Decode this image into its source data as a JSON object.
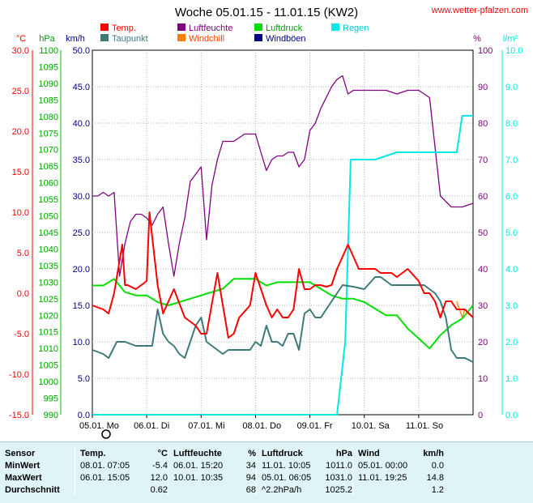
{
  "title": "Woche 05.01.15 - 11.01.15 (KW2)",
  "website": "www.wetter-pfalzen.com",
  "legend": [
    {
      "name": "Temp.",
      "color": "#ff0000"
    },
    {
      "name": "Luftfeuchte",
      "color": "#800080"
    },
    {
      "name": "Luftdruck",
      "color": "#00e000"
    },
    {
      "name": "Regen",
      "color": "#00e8e8"
    },
    {
      "name": "Taupunkt",
      "color": "#3f7a7a"
    },
    {
      "name": "Windchill",
      "color": "#ff8000"
    },
    {
      "name": "Windböen",
      "color": "#000080"
    }
  ],
  "axes": {
    "temp": {
      "unit": "°C",
      "color": "#ff0000",
      "min": -15,
      "max": 30,
      "ticks": [
        "30.0",
        "25.0",
        "20.0",
        "15.0",
        "10.0",
        "5.0",
        "0.0",
        "-5.0",
        "-10.0",
        "-15.0"
      ]
    },
    "pressure": {
      "unit": "hPa",
      "color": "#00a000",
      "min": 990,
      "max": 1100,
      "ticks": [
        "1100",
        "1095",
        "1090",
        "1085",
        "1080",
        "1075",
        "1070",
        "1065",
        "1060",
        "1055",
        "1050",
        "1045",
        "1040",
        "1035",
        "1030",
        "1025",
        "1020",
        "1015",
        "1010",
        "1005",
        "1000",
        "995",
        "990"
      ]
    },
    "wind": {
      "unit": "km/h",
      "color": "#000080",
      "min": 0,
      "max": 50,
      "ticks": [
        "50.0",
        "45.0",
        "40.0",
        "35.0",
        "30.0",
        "25.0",
        "20.0",
        "15.0",
        "10.0",
        "5.0",
        "0.0"
      ]
    },
    "humidity": {
      "unit": "%",
      "color": "#800080",
      "min": 0,
      "max": 100,
      "ticks": [
        "100",
        "90",
        "80",
        "70",
        "60",
        "50",
        "40",
        "30",
        "20",
        "10",
        "0"
      ]
    },
    "rain": {
      "unit": "l/m²",
      "color": "#00e8e8",
      "min": 0,
      "max": 10,
      "ticks": [
        "10.0",
        "9.0",
        "8.0",
        "7.0",
        "6.0",
        "5.0",
        "4.0",
        "3.0",
        "2.0",
        "1.0",
        "0.0"
      ]
    }
  },
  "chart_data": {
    "type": "line",
    "x_labels": [
      "05.01. Mo",
      "06.01. Di",
      "07.01. Mi",
      "08.01. Do",
      "09.01. Fr",
      "10.01. Sa",
      "11.01. So"
    ],
    "x_range_days": [
      0,
      7
    ],
    "grid": true,
    "series": [
      {
        "name": "Temp.",
        "axis": "temp",
        "color": "#ff0000",
        "x": [
          0,
          0.2,
          0.3,
          0.4,
          0.5,
          0.55,
          0.6,
          0.65,
          0.8,
          0.9,
          1.0,
          1.05,
          1.2,
          1.3,
          1.4,
          1.5,
          1.7,
          1.9,
          2.0,
          2.1,
          2.3,
          2.5,
          2.6,
          2.7,
          2.9,
          3.0,
          3.2,
          3.3,
          3.4,
          3.5,
          3.6,
          3.7,
          3.8,
          3.9,
          4.0,
          4.1,
          4.2,
          4.3,
          4.4,
          4.5,
          4.7,
          4.9,
          5.0,
          5.2,
          5.3,
          5.4,
          5.5,
          5.6,
          5.8,
          6.0,
          6.1,
          6.2,
          6.3,
          6.4,
          6.5,
          6.6,
          6.7,
          6.85,
          7.0
        ],
        "y": [
          -1.5,
          -2,
          -2.5,
          0,
          4,
          6,
          1,
          1,
          0.5,
          1,
          1.5,
          10,
          1,
          -2.5,
          -1,
          0.5,
          -3,
          -4,
          -5,
          -5,
          2.5,
          -5.5,
          -5,
          -3,
          -1.5,
          2.5,
          -1.5,
          -3,
          -2,
          -3,
          -3,
          -2,
          3,
          0.5,
          0.5,
          1,
          1,
          0.8,
          1,
          3,
          6,
          3,
          3,
          3,
          2.5,
          2.5,
          2.5,
          2,
          3,
          1.5,
          0,
          0,
          -1,
          -3,
          -1,
          -1,
          -2,
          -2,
          -3
        ]
      },
      {
        "name": "Taupunkt",
        "axis": "temp",
        "color": "#3f7a7a",
        "x": [
          0,
          0.2,
          0.3,
          0.45,
          0.6,
          0.8,
          1.0,
          1.1,
          1.2,
          1.3,
          1.4,
          1.5,
          1.6,
          1.7,
          1.9,
          2.0,
          2.1,
          2.2,
          2.3,
          2.4,
          2.5,
          2.7,
          2.9,
          3.0,
          3.1,
          3.2,
          3.3,
          3.4,
          3.5,
          3.6,
          3.7,
          3.8,
          3.9,
          4.0,
          4.1,
          4.2,
          4.3,
          4.4,
          4.5,
          4.6,
          4.8,
          5.0,
          5.2,
          5.3,
          5.4,
          5.5,
          5.6,
          5.7,
          5.9,
          6.0,
          6.1,
          6.2,
          6.3,
          6.4,
          6.5,
          6.6,
          6.7,
          6.85,
          7.0
        ],
        "y": [
          -7,
          -7.5,
          -8,
          -6,
          -6,
          -6.5,
          -6.5,
          -6.5,
          -2,
          -5,
          -6,
          -6.5,
          -7.5,
          -8,
          -4,
          -3,
          -6,
          -6.5,
          -7,
          -7.5,
          -7,
          -7,
          -7,
          -6,
          -6.5,
          -4,
          -6,
          -6,
          -6.5,
          -5,
          -5,
          -7,
          -2.5,
          -2,
          -3,
          -3,
          -2,
          -1,
          0,
          1,
          0.8,
          0.5,
          2,
          2,
          1.5,
          1,
          1,
          1,
          1,
          1,
          1,
          0.5,
          0,
          -1,
          -3,
          -7,
          -8,
          -8,
          -8.5
        ]
      },
      {
        "name": "Luftfeuchte",
        "axis": "humidity",
        "color": "#800080",
        "x": [
          0,
          0.1,
          0.2,
          0.3,
          0.4,
          0.5,
          0.6,
          0.7,
          0.8,
          0.9,
          1.0,
          1.1,
          1.2,
          1.3,
          1.4,
          1.5,
          1.6,
          1.7,
          1.8,
          1.9,
          2.0,
          2.1,
          2.2,
          2.3,
          2.4,
          2.5,
          2.6,
          2.7,
          2.8,
          2.9,
          3.0,
          3.1,
          3.2,
          3.3,
          3.4,
          3.5,
          3.6,
          3.7,
          3.8,
          3.9,
          4.0,
          4.1,
          4.2,
          4.3,
          4.4,
          4.5,
          4.6,
          4.7,
          4.8,
          4.9,
          5.0,
          5.2,
          5.4,
          5.6,
          5.8,
          6.0,
          6.2,
          6.4,
          6.6,
          6.8,
          7.0
        ],
        "y": [
          60,
          60,
          61,
          60,
          61,
          38,
          47,
          53,
          55,
          55,
          54,
          52,
          55,
          57,
          47,
          38,
          47,
          54,
          64,
          66,
          68,
          48,
          63,
          70,
          75,
          75,
          75,
          76,
          77,
          77,
          77,
          72,
          67,
          70,
          71,
          71,
          72,
          72,
          68,
          70,
          78,
          80,
          84,
          87,
          90,
          92,
          93,
          88,
          89,
          89,
          89,
          89,
          89,
          88,
          89,
          89,
          87,
          60,
          57,
          57,
          58
        ]
      },
      {
        "name": "Luftdruck",
        "axis": "pressure",
        "color": "#00e000",
        "x": [
          0,
          0.2,
          0.4,
          0.6,
          0.8,
          1.0,
          1.2,
          1.4,
          1.6,
          1.8,
          2.0,
          2.2,
          2.4,
          2.6,
          2.8,
          3.0,
          3.2,
          3.4,
          3.6,
          3.8,
          4.0,
          4.2,
          4.4,
          4.6,
          4.8,
          5.0,
          5.2,
          5.4,
          5.6,
          5.8,
          6.0,
          6.2,
          6.4,
          6.6,
          6.8,
          7.0
        ],
        "y": [
          1029,
          1029,
          1031,
          1027,
          1026,
          1026,
          1024,
          1023,
          1024,
          1025,
          1026,
          1027,
          1028,
          1031,
          1031,
          1031,
          1029,
          1030,
          1030,
          1030,
          1030,
          1028,
          1026,
          1025,
          1025,
          1024,
          1022,
          1020,
          1020,
          1016,
          1013,
          1010,
          1014,
          1017,
          1019,
          1023
        ]
      },
      {
        "name": "Regen",
        "axis": "rain",
        "color": "#00e8e8",
        "x": [
          0,
          4.5,
          4.65,
          4.75,
          5.0,
          5.2,
          5.6,
          5.8,
          6.0,
          6.2,
          6.5,
          6.7,
          6.8,
          7.0
        ],
        "y": [
          0,
          0,
          2.0,
          7.0,
          7.0,
          7.0,
          7.2,
          7.2,
          7.2,
          7.2,
          7.2,
          7.2,
          8.2,
          8.2
        ]
      },
      {
        "name": "Windchill",
        "axis": "temp",
        "color": "#ff8000",
        "x": [
          6.7,
          6.8,
          6.85,
          6.9,
          7.0
        ],
        "y": [
          -1,
          -3,
          -2,
          -2.5,
          -3
        ]
      }
    ]
  },
  "stats": {
    "headers": {
      "sensor": "Sensor",
      "temp": "Temp.",
      "temp_unit": "°C",
      "hum": "Luftfeuchte",
      "hum_unit": "%",
      "press": "Luftdruck",
      "press_unit": "hPa",
      "wind": "Wind",
      "wind_unit": "km/h"
    },
    "rows": [
      {
        "label": "MinWert",
        "temp_time": "08.01.  07:05",
        "temp_val": "-5.4",
        "hum_time": "06.01.  15:20",
        "hum_val": "34",
        "press_time": "11.01.  10:05",
        "press_val": "1011.0",
        "wind_time": "05.01.  00:00",
        "wind_val": "0.0"
      },
      {
        "label": "MaxWert",
        "temp_time": "06.01.  15:05",
        "temp_val": "12.0",
        "hum_time": "10.01.  10:35",
        "hum_val": "94",
        "press_time": "05.01.  06:05",
        "press_val": "1031.0",
        "wind_time": "11.01.  19:25",
        "wind_val": "14.8"
      },
      {
        "label": "Durchschnitt",
        "temp_time": "",
        "temp_val": "0.62",
        "hum_time": "",
        "hum_val": "68",
        "press_time": "^2.2hPa/h",
        "press_val": "1025.2",
        "wind_time": "",
        "wind_val": "1.2"
      }
    ]
  }
}
